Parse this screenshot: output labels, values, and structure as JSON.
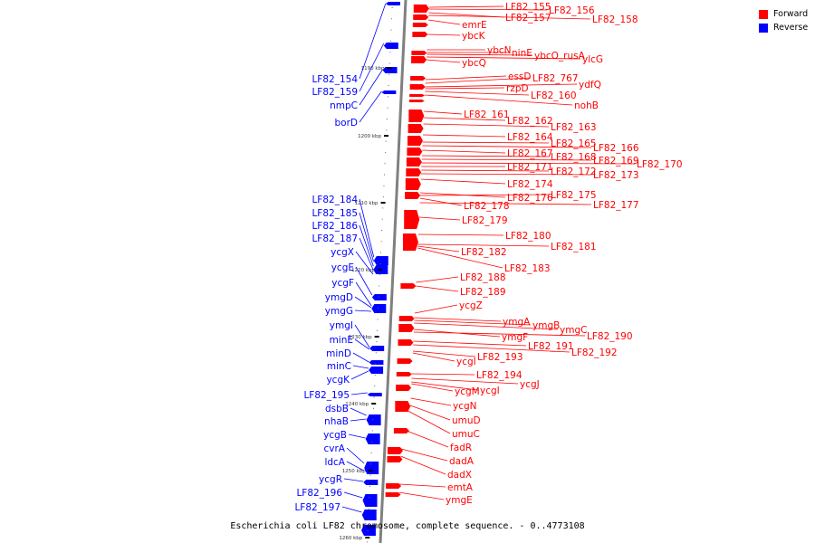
{
  "caption": "Escherichia coli LF82 chromosome, complete sequence. - 0..4773108",
  "legend": {
    "items": [
      {
        "label": "Forward",
        "color": "#ff0000"
      },
      {
        "label": "Reverse",
        "color": "#0000ff"
      }
    ]
  },
  "colors": {
    "forward": "#ff0000",
    "reverse": "#0000ff",
    "axis": "#808080"
  },
  "ticks": [
    "1190 kbp",
    "1200 kbp",
    "1210 kbp",
    "1220 kbp",
    "1230 kbp",
    "1240 kbp",
    "1250 kbp",
    "1260 kbp"
  ],
  "forward_genes": [
    "LF82_155",
    "LF82_156",
    "LF82_157",
    "LF82_158",
    "emrE",
    "ybcK",
    "ybcN",
    "ninE",
    "ybcO_rusA",
    "ylcG",
    "ybcQ",
    "essD",
    "LF82_767",
    "ydfQ",
    "rzpD",
    "LF82_160",
    "nohB",
    "LF82_161",
    "LF82_162",
    "LF82_163",
    "LF82_164",
    "LF82_165",
    "LF82_166",
    "LF82_167",
    "LF82_168",
    "LF82_169",
    "LF82_170",
    "LF82_171",
    "LF82_172",
    "LF82_173",
    "LF82_174",
    "LF82_176",
    "LF82_175",
    "LF82_178",
    "LF82_177",
    "LF82_179",
    "LF82_180",
    "LF82_181",
    "LF82_182",
    "LF82_183",
    "LF82_188",
    "LF82_189",
    "ycgZ",
    "ymgA",
    "ymgB",
    "ymgC",
    "ymgF",
    "LF82_190",
    "LF82_191",
    "LF82_192",
    "ycgI",
    "LF82_193",
    "LF82_194",
    "ycgJ",
    "ycgM",
    "ycgI",
    "ycgN",
    "umuD",
    "umuC",
    "fadR",
    "dadA",
    "dadX",
    "emtA",
    "ymgE"
  ],
  "reverse_genes": [
    "LF82_154",
    "LF82_159",
    "nmpC",
    "borD",
    "LF82_184",
    "LF82_185",
    "LF82_186",
    "LF82_187",
    "ycgX",
    "ycgE",
    "ycgF",
    "ymgD",
    "ymgG",
    "ymgI",
    "minE",
    "minD",
    "minC",
    "ycgK",
    "LF82_195",
    "dsbB",
    "nhaB",
    "ycgB",
    "cvrA",
    "ldcA",
    "ycgR",
    "LF82_196",
    "LF82_197"
  ]
}
